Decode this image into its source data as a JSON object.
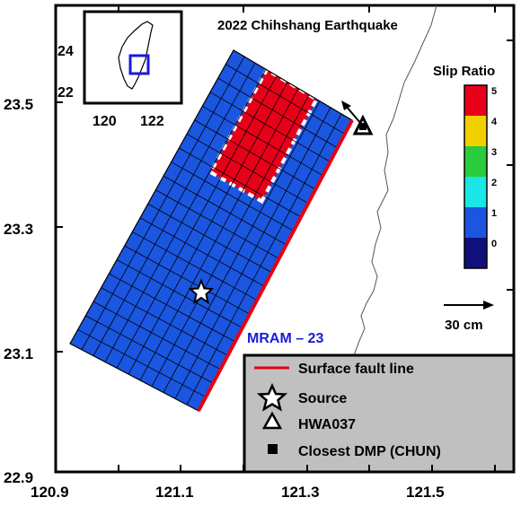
{
  "title": "2022 Chihshang Earthquake",
  "axes": {
    "x_ticks": [
      "120.9",
      "121.1",
      "121.3",
      "121.5"
    ],
    "y_ticks": [
      "23.5",
      "23.3",
      "23.1",
      "22.9"
    ],
    "xlim": [
      120.9,
      121.6
    ],
    "ylim": [
      22.9,
      23.65
    ]
  },
  "inset": {
    "y_ticks": [
      "24",
      "22"
    ],
    "x_ticks": [
      "120",
      "122"
    ],
    "study_box_color": "#1a1adc"
  },
  "colorbar": {
    "title": "Slip Ratio",
    "ticks": [
      "5",
      "4",
      "3",
      "2",
      "1",
      "0"
    ],
    "colors": [
      "#e8001a",
      "#f2d000",
      "#28cc3c",
      "#19e6e6",
      "#1a56e0",
      "#10107a"
    ]
  },
  "fault": {
    "label": "MRAM – 23",
    "label_color": "#1a1adc",
    "background_slip_color": "#1a56e0",
    "asperity_slip_color": "#e8001a",
    "surface_line_color": "#e80010"
  },
  "scale_arrow": {
    "label": "30 cm"
  },
  "legend": {
    "items": [
      {
        "symbol": "red-line",
        "label": "Surface fault line"
      },
      {
        "symbol": "star",
        "label": "Source"
      },
      {
        "symbol": "triangle",
        "label": "HWA037"
      },
      {
        "symbol": "square",
        "label": "Closest DMP (CHUN)"
      }
    ]
  },
  "map_elements": {
    "source_icon": "star-icon",
    "station_icon": "triangle-icon",
    "dmp_icon": "square-icon"
  }
}
